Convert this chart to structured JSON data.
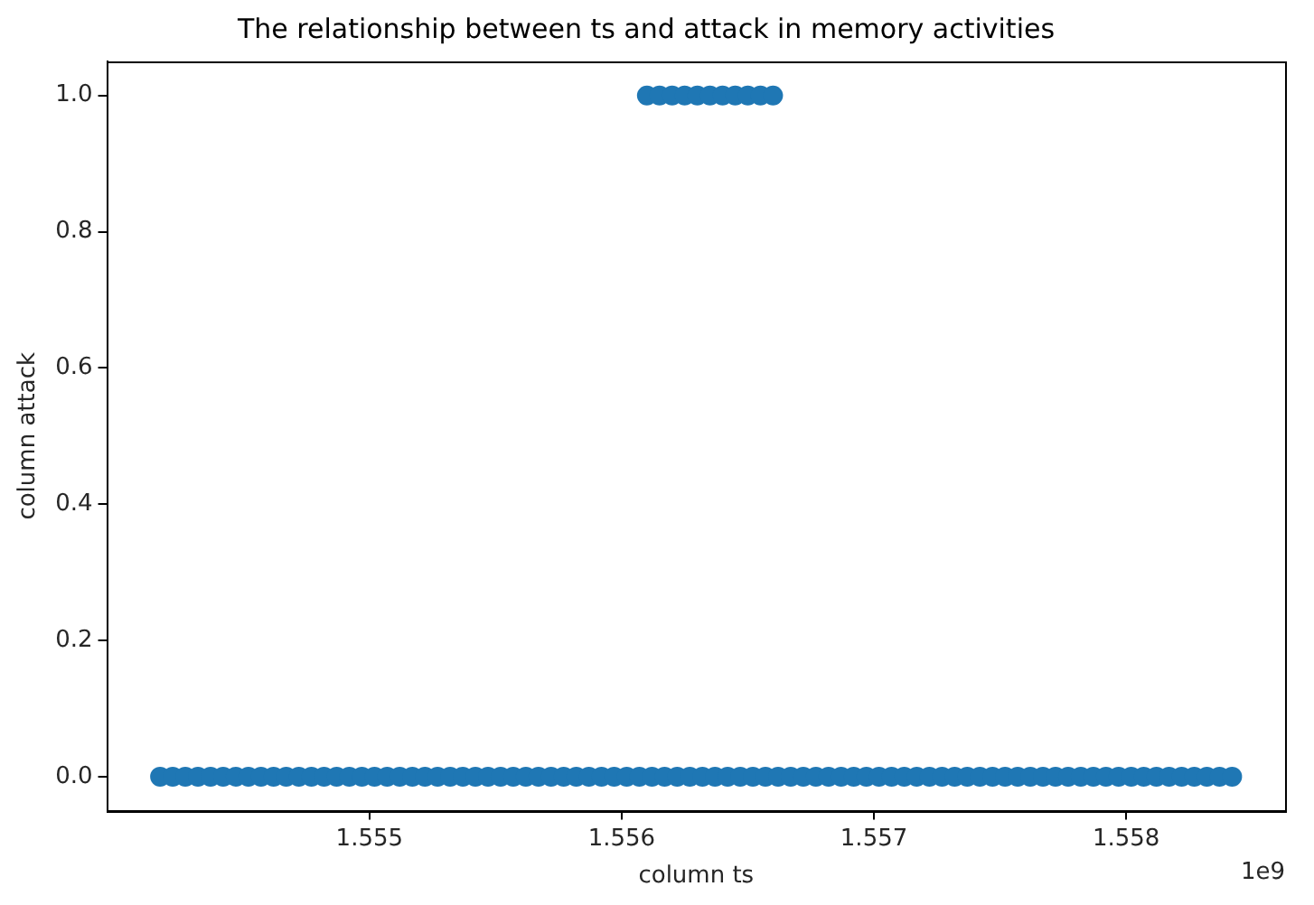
{
  "chart_data": {
    "type": "scatter",
    "title": "The relationship between ts and attack in memory activities",
    "xlabel": "column ts",
    "ylabel": "column attack",
    "annotations": [
      "1e9"
    ],
    "xlim": [
      1.55396,
      1.55863
    ],
    "xticks": [
      1.555,
      1.556,
      1.557,
      1.558
    ],
    "ylim": [
      -0.05,
      1.05
    ],
    "yticks": [
      {
        "value": 0,
        "label": "0.0"
      },
      {
        "value": 0.2,
        "label": "0.2"
      },
      {
        "value": 0.4,
        "label": "0.4"
      },
      {
        "value": 0.6,
        "label": "0.6"
      },
      {
        "value": 0.8,
        "label": "0.8"
      },
      {
        "value": 1,
        "label": "1.0"
      }
    ],
    "grid": false,
    "marker": "circle",
    "legend": false,
    "series": [
      {
        "color": "#1f77b4",
        "x": [
          1.55417,
          1.55422,
          1.55427,
          1.55432,
          1.55437,
          1.55442,
          1.55447,
          1.55452,
          1.55457,
          1.55462,
          1.55467,
          1.55472,
          1.55477,
          1.55482,
          1.55487,
          1.55492,
          1.55497,
          1.55502,
          1.55507,
          1.55512,
          1.55517,
          1.55522,
          1.55527,
          1.55532,
          1.55537,
          1.55542,
          1.55547,
          1.55552,
          1.55557,
          1.55562,
          1.55567,
          1.55572,
          1.55577,
          1.55582,
          1.55587,
          1.55592,
          1.55597,
          1.55602,
          1.55607,
          1.55612,
          1.55617,
          1.55622,
          1.55627,
          1.55632,
          1.55637,
          1.55642,
          1.55647,
          1.55652,
          1.55657,
          1.55662,
          1.55667,
          1.55672,
          1.55677,
          1.55682,
          1.55687,
          1.55692,
          1.55697,
          1.55702,
          1.55707,
          1.55712,
          1.55717,
          1.55722,
          1.55727,
          1.55732,
          1.55737,
          1.55742,
          1.55747,
          1.55752,
          1.55757,
          1.55762,
          1.55767,
          1.55772,
          1.55777,
          1.55782,
          1.55787,
          1.55792,
          1.55797,
          1.55802,
          1.55807,
          1.55812,
          1.55817,
          1.55822,
          1.55827,
          1.55832,
          1.55837,
          1.55842
        ],
        "values": [
          0,
          0,
          0,
          0,
          0,
          0,
          0,
          0,
          0,
          0,
          0,
          0,
          0,
          0,
          0,
          0,
          0,
          0,
          0,
          0,
          0,
          0,
          0,
          0,
          0,
          0,
          0,
          0,
          0,
          0,
          0,
          0,
          0,
          0,
          0,
          0,
          0,
          0,
          0,
          0,
          0,
          0,
          0,
          0,
          0,
          0,
          0,
          0,
          0,
          0,
          0,
          0,
          0,
          0,
          0,
          0,
          0,
          0,
          0,
          0,
          0,
          0,
          0,
          0,
          0,
          0,
          0,
          0,
          0,
          0,
          0,
          0,
          0,
          0,
          0,
          0,
          0,
          0,
          0,
          0,
          0,
          0,
          0,
          0,
          0,
          0
        ]
      },
      {
        "color": "#1f77b4",
        "x": [
          1.5561,
          1.55615,
          1.5562,
          1.55625,
          1.5563,
          1.55635,
          1.5564,
          1.55645,
          1.5565,
          1.55655,
          1.5566
        ],
        "values": [
          1,
          1,
          1,
          1,
          1,
          1,
          1,
          1,
          1,
          1,
          1
        ]
      }
    ]
  }
}
